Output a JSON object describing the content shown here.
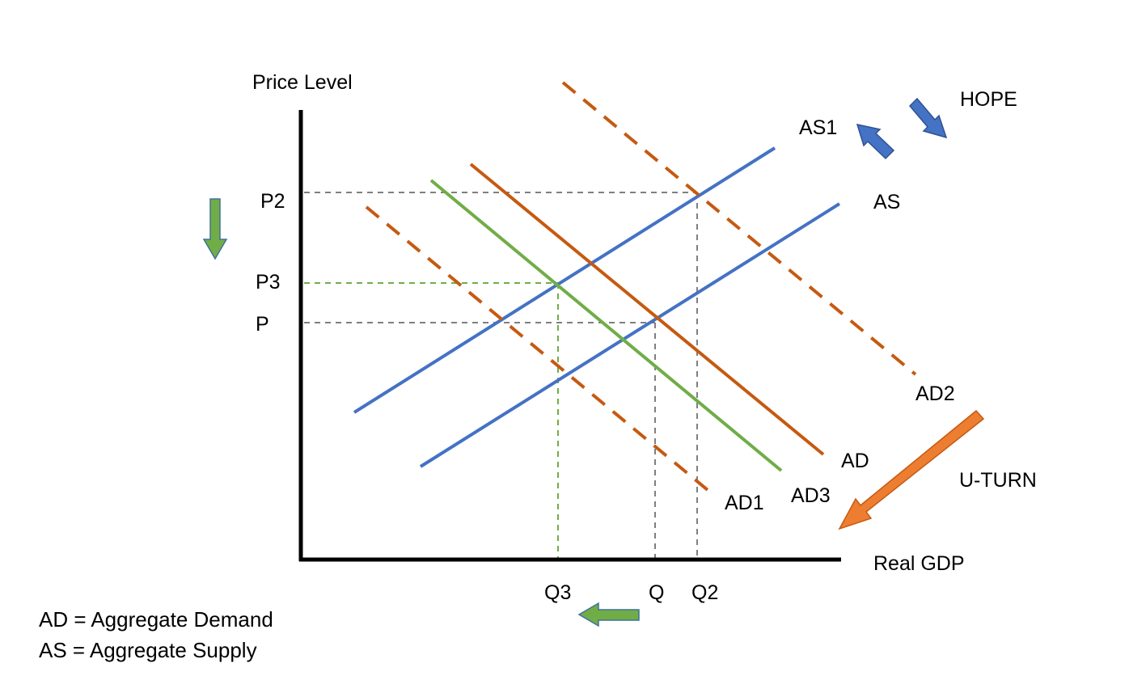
{
  "axes": {
    "y_label": "Price Level",
    "x_label": "Real GDP"
  },
  "curves": {
    "as": "AS",
    "as1": "AS1",
    "ad": "AD",
    "ad1": "AD1",
    "ad2": "AD2",
    "ad3": "AD3"
  },
  "price_levels": {
    "p2": "P2",
    "p3": "P3",
    "p": "P"
  },
  "quantities": {
    "q3": "Q3",
    "q": "Q",
    "q2": "Q2"
  },
  "annotations": {
    "hope": "HOPE",
    "u_turn": "U-TURN"
  },
  "legend": {
    "ad": "AD = Aggregate Demand",
    "as": "AS = Aggregate Supply"
  },
  "colors": {
    "supply": "#4472C4",
    "demand": "#C55A11",
    "demand_new": "#70AD47",
    "arrow_orange": "#ED7D31",
    "guide": "#7F7F7F"
  }
}
